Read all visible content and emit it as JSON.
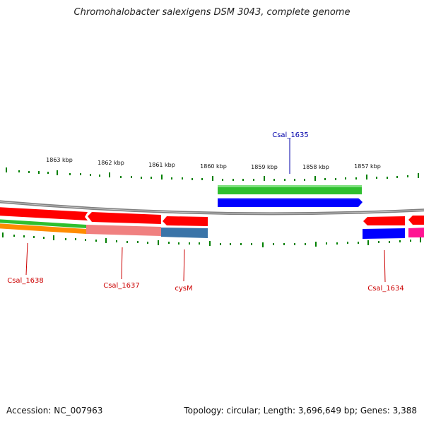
{
  "title": "Chromohalobacter salexigens DSM 3043, complete genome",
  "footer": {
    "accession": "Accession: NC_007963",
    "summary": "Topology: circular; Length: 3,696,649 bp; Genes: 3,388"
  },
  "scale_labels": [
    "1863 kbp",
    "1862 kbp",
    "1861 kbp",
    "1860 kbp",
    "1859 kbp",
    "1858 kbp",
    "1857 kbp"
  ],
  "gene_labels": {
    "csal_1635": "Csal_1635",
    "csal_1638": "Csal_1638",
    "csal_1637": "Csal_1637",
    "cysm": "cysM",
    "csal_1634": "Csal_1634"
  },
  "colors": {
    "red": "#ff0000",
    "green": "#2fbf2f",
    "blue": "#0000ff",
    "pink": "#f08080",
    "steelblue": "#3a74a8",
    "orange": "#ff8c00",
    "magenta": "#ff1493",
    "tick_green": "#008000",
    "label_red": "#cc0000",
    "label_blue": "#0000aa",
    "backbone": "#808080"
  }
}
